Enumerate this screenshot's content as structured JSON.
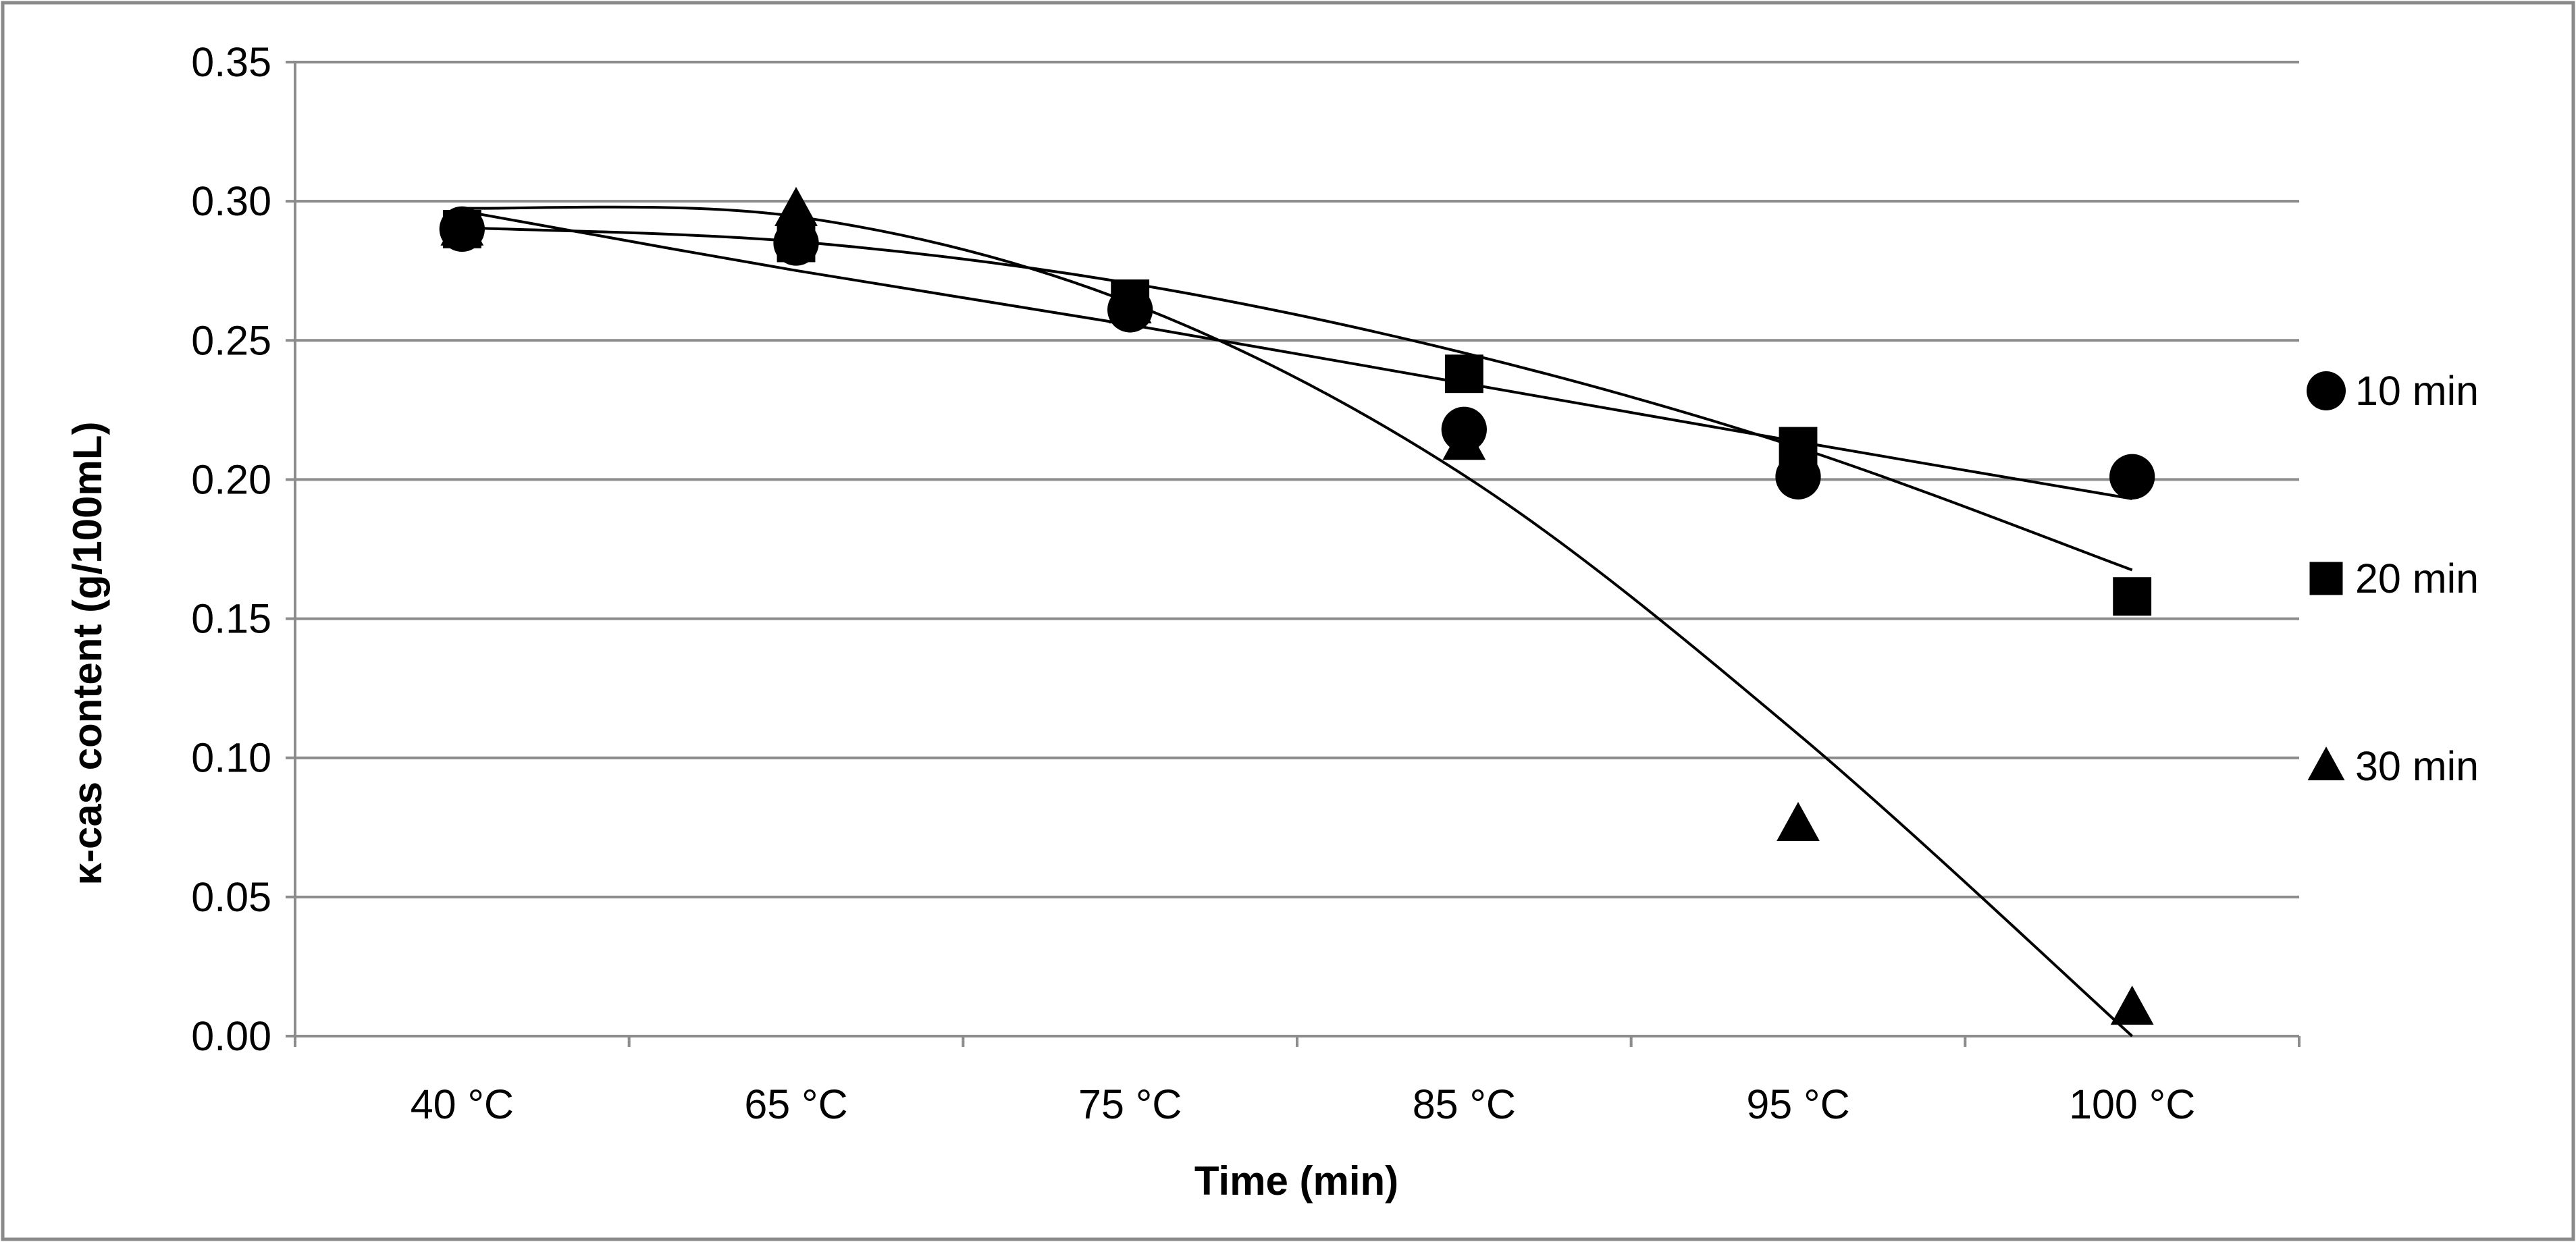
{
  "chart_data": {
    "type": "scatter",
    "title": "",
    "xlabel": "Time (min)",
    "ylabel": "κ-cas content (g/100mL)",
    "categories": [
      "40 °C",
      "65 °C",
      "75 °C",
      "85 °C",
      "95 °C",
      "100 °C"
    ],
    "ylim": [
      0,
      0.35
    ],
    "yticks": [
      0.0,
      0.05,
      0.1,
      0.15,
      0.2,
      0.25,
      0.3,
      0.35
    ],
    "ytick_labels": [
      "0.00",
      "0.05",
      "0.10",
      "0.15",
      "0.20",
      "0.25",
      "0.30",
      "0.35"
    ],
    "grid": true,
    "legend_position": "right",
    "series": [
      {
        "name": "10 min",
        "marker": "circle",
        "values": [
          0.29,
          0.285,
          0.261,
          0.218,
          0.201,
          0.201
        ],
        "trendline": [
          0.2965,
          0.2751,
          0.2556,
          0.2346,
          0.2136,
          0.1931
        ]
      },
      {
        "name": "20 min",
        "marker": "square",
        "values": [
          0.29,
          0.285,
          0.265,
          0.238,
          0.212,
          0.158
        ],
        "trendline": [
          0.2905,
          0.2855,
          0.2705,
          0.2455,
          0.2115,
          0.1675
        ]
      },
      {
        "name": "30 min",
        "marker": "triangle",
        "values": [
          0.29,
          0.297,
          0.262,
          0.213,
          0.076,
          0.01
        ],
        "trendline": [
          0.2975,
          0.2945,
          0.2635,
          0.2015,
          0.1085,
          0.0
        ]
      }
    ]
  }
}
